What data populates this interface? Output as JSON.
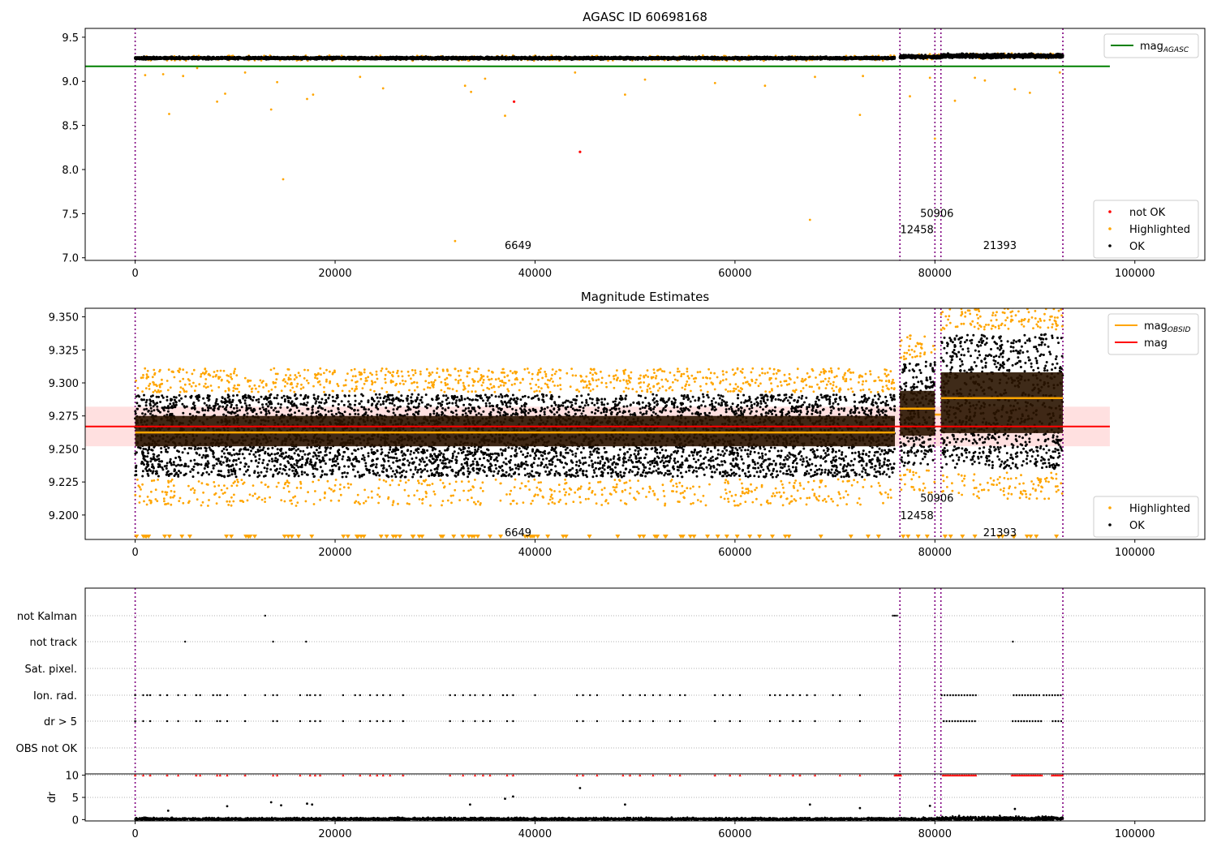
{
  "chart_data": [
    {
      "type": "scatter",
      "title": "AGASC ID 60698168",
      "xlim": [
        -5000,
        107000
      ],
      "ylim": [
        6.97,
        9.6
      ],
      "xticks": [
        0,
        20000,
        40000,
        60000,
        80000,
        100000
      ],
      "yticks": [
        7.0,
        7.5,
        8.0,
        8.5,
        9.0,
        9.5
      ],
      "ytick_labels": [
        "7.0",
        "7.5",
        "8.0",
        "8.5",
        "9.0",
        "9.5"
      ],
      "hline": {
        "name": "mag_AGASC",
        "y": 9.17,
        "x_end": 97500,
        "color": "#008000"
      },
      "obsid_boundaries": [
        0,
        76500,
        80000,
        80600,
        92800
      ],
      "obsid_labels": [
        {
          "text": "6649",
          "x": 38300,
          "y": 7.1
        },
        {
          "text": "12458",
          "x": 78200,
          "y": 7.28
        },
        {
          "text": "50906",
          "x": 80200,
          "y": 7.46
        },
        {
          "text": "21393",
          "x": 86500,
          "y": 7.1
        }
      ],
      "segments": [
        {
          "x0": 0,
          "x1": 76000,
          "mean": 9.263,
          "spread": 0.03
        },
        {
          "x0": 76500,
          "x1": 80000,
          "mean": 9.279,
          "spread": 0.04
        },
        {
          "x0": 80000,
          "x1": 80600,
          "mean": 9.276,
          "spread": 0.04
        },
        {
          "x0": 80600,
          "x1": 92800,
          "mean": 9.288,
          "spread": 0.05
        }
      ],
      "not_ok_points": [
        {
          "x": 37900,
          "y": 8.77
        },
        {
          "x": 44500,
          "y": 8.2
        }
      ],
      "highlighted_points": [
        {
          "x": 3400,
          "y": 8.63
        },
        {
          "x": 8200,
          "y": 8.77
        },
        {
          "x": 9000,
          "y": 8.86
        },
        {
          "x": 13600,
          "y": 8.68
        },
        {
          "x": 14800,
          "y": 7.89
        },
        {
          "x": 17200,
          "y": 8.8
        },
        {
          "x": 17800,
          "y": 8.85
        },
        {
          "x": 24800,
          "y": 8.92
        },
        {
          "x": 32000,
          "y": 7.19
        },
        {
          "x": 33000,
          "y": 8.95
        },
        {
          "x": 33600,
          "y": 8.88
        },
        {
          "x": 37000,
          "y": 8.61
        },
        {
          "x": 49000,
          "y": 8.85
        },
        {
          "x": 63000,
          "y": 8.95
        },
        {
          "x": 67500,
          "y": 7.43
        },
        {
          "x": 72500,
          "y": 8.62
        },
        {
          "x": 77500,
          "y": 8.83
        },
        {
          "x": 79500,
          "y": 9.04
        },
        {
          "x": 80000,
          "y": 8.35
        },
        {
          "x": 82000,
          "y": 8.78
        },
        {
          "x": 84000,
          "y": 9.04
        },
        {
          "x": 85000,
          "y": 9.01
        },
        {
          "x": 88000,
          "y": 8.91
        },
        {
          "x": 89500,
          "y": 8.87
        },
        {
          "x": 1000,
          "y": 9.07
        },
        {
          "x": 2800,
          "y": 9.08
        },
        {
          "x": 4800,
          "y": 9.06
        },
        {
          "x": 6200,
          "y": 9.15
        },
        {
          "x": 11000,
          "y": 9.1
        },
        {
          "x": 14200,
          "y": 8.99
        },
        {
          "x": 22500,
          "y": 9.05
        },
        {
          "x": 35000,
          "y": 9.03
        },
        {
          "x": 44000,
          "y": 9.1
        },
        {
          "x": 51000,
          "y": 9.02
        },
        {
          "x": 58000,
          "y": 8.98
        },
        {
          "x": 68000,
          "y": 9.05
        },
        {
          "x": 72800,
          "y": 9.06
        },
        {
          "x": 92500,
          "y": 9.1
        }
      ],
      "legend": {
        "position": "lower-right",
        "entries": [
          {
            "label": "not OK",
            "color": "#ff0000"
          },
          {
            "label": "Highlighted",
            "color": "#ffa500"
          },
          {
            "label": "OK",
            "color": "#000000"
          }
        ],
        "top_entry": {
          "label": "mag",
          "subscript": "AGASC",
          "color": "#008000"
        }
      }
    },
    {
      "type": "scatter",
      "title": "Magnitude Estimates",
      "xlim": [
        -5000,
        107000
      ],
      "ylim": [
        9.1815,
        9.3565
      ],
      "xticks": [
        0,
        20000,
        40000,
        60000,
        80000,
        100000
      ],
      "yticks": [
        9.2,
        9.225,
        9.25,
        9.275,
        9.3,
        9.325,
        9.35
      ],
      "ytick_labels": [
        "9.200",
        "9.225",
        "9.250",
        "9.275",
        "9.300",
        "9.325",
        "9.350"
      ],
      "mean_mag": {
        "name": "mag",
        "y": 9.267,
        "band": [
          9.252,
          9.282
        ],
        "x_end": 97500,
        "color": "#ff0000"
      },
      "obsid_mags": [
        {
          "x0": 0,
          "x1": 76000,
          "y": 9.2625
        },
        {
          "x0": 76500,
          "x1": 80000,
          "y": 9.2805
        },
        {
          "x0": 80000,
          "x1": 80600,
          "y": 9.276
        },
        {
          "x0": 80600,
          "x1": 92800,
          "y": 9.2885
        }
      ],
      "obsid_boundaries": [
        0,
        76500,
        80000,
        80600,
        92800
      ],
      "obsid_labels": [
        {
          "text": "6649",
          "x": 38300,
          "y": 9.184
        },
        {
          "text": "12458",
          "x": 78200,
          "y": 9.197
        },
        {
          "text": "50906",
          "x": 80200,
          "y": 9.21
        },
        {
          "text": "21393",
          "x": 86500,
          "y": 9.184
        }
      ],
      "segments": [
        {
          "x0": 0,
          "x1": 76000,
          "lo": 9.227,
          "hi": 9.293,
          "core_lo": 9.252,
          "core_hi": 9.275
        },
        {
          "x0": 76500,
          "x1": 80000,
          "lo": 9.235,
          "hi": 9.318,
          "core_lo": 9.26,
          "core_hi": 9.294
        },
        {
          "x0": 80600,
          "x1": 92800,
          "lo": 9.232,
          "hi": 9.34,
          "core_lo": 9.262,
          "core_hi": 9.308
        }
      ],
      "legend": {
        "position": "lower-right",
        "entries": [
          {
            "label": "Highlighted",
            "color": "#ffa500"
          },
          {
            "label": "OK",
            "color": "#000000"
          }
        ],
        "top_entries": [
          {
            "label": "mag",
            "subscript": "OBSID",
            "color": "#ffa500"
          },
          {
            "label": "mag",
            "color": "#ff0000"
          }
        ]
      }
    },
    {
      "type": "scatter",
      "xlim": [
        -5000,
        107000
      ],
      "xticks": [
        0,
        20000,
        40000,
        60000,
        80000,
        100000
      ],
      "flag_rows": [
        "not Kalman",
        "not track",
        "Sat. pixel.",
        "Ion. rad.",
        "dr > 5",
        "OBS not OK"
      ],
      "flag_points": {
        "not Kalman": [
          13000,
          75800,
          76000,
          76200
        ],
        "not track": [
          5000,
          13800,
          17100,
          87800
        ],
        "Sat. pixel.": [],
        "Ion. rad.": [
          0,
          800,
          1200,
          1500,
          2500,
          3200,
          4300,
          5000,
          6100,
          6500,
          7800,
          8200,
          8500,
          9200,
          11000,
          13000,
          13800,
          14200,
          16500,
          17200,
          17500,
          18000,
          18500,
          20800,
          22000,
          22500,
          23500,
          24200,
          24800,
          25500,
          26800,
          31500,
          32000,
          32800,
          33500,
          34000,
          34800,
          35500,
          36800,
          37200,
          37800,
          40000,
          44200,
          44800,
          45500,
          46200,
          48800,
          49500,
          50500,
          51000,
          51800,
          52500,
          53500,
          54500,
          55000,
          58000,
          58800,
          59500,
          60500,
          63500,
          64000,
          64500,
          65200,
          65800,
          66500,
          67200,
          68000,
          69800,
          70500,
          72500
        ],
        "dr > 5": [
          0,
          800,
          1500,
          3200,
          4300,
          6100,
          6500,
          8200,
          8500,
          9200,
          11000,
          13800,
          14200,
          16500,
          17500,
          18000,
          18500,
          20800,
          22500,
          23500,
          24200,
          24800,
          25500,
          26800,
          31500,
          32800,
          34000,
          34800,
          35500,
          37200,
          37800,
          44200,
          44800,
          46200,
          48800,
          49500,
          50500,
          51800,
          53500,
          54500,
          58000,
          59500,
          60500,
          63500,
          64500,
          65800,
          66500,
          68000,
          70500,
          72500
        ],
        "OBS not OK": []
      },
      "dense_flag_ranges": [
        {
          "row": "Ion. rad.",
          "x0": 80600,
          "x1": 84300
        },
        {
          "row": "Ion. rad.",
          "x0": 87800,
          "x1": 90600
        },
        {
          "row": "Ion. rad.",
          "x0": 90800,
          "x1": 92800
        },
        {
          "row": "dr > 5",
          "x0": 80800,
          "x1": 84200
        },
        {
          "row": "dr > 5",
          "x0": 87700,
          "x1": 90800
        },
        {
          "row": "dr > 5",
          "x0": 91700,
          "x1": 92800
        }
      ],
      "obsid_boundaries": [
        0,
        76500,
        80000,
        80600,
        92800
      ]
    },
    {
      "type": "scatter",
      "ylabel": "dr",
      "xlim": [
        -5000,
        107000
      ],
      "ylim": [
        -0.3,
        10.3
      ],
      "yticks": [
        0,
        5,
        10
      ],
      "xticks": [
        0,
        20000,
        40000,
        60000,
        80000,
        100000
      ],
      "clipped_value": 10,
      "outliers": [
        {
          "x": 3300,
          "y": 2.0
        },
        {
          "x": 9200,
          "y": 3.0
        },
        {
          "x": 13600,
          "y": 3.9
        },
        {
          "x": 14600,
          "y": 3.2
        },
        {
          "x": 17200,
          "y": 3.6
        },
        {
          "x": 17700,
          "y": 3.4
        },
        {
          "x": 33500,
          "y": 3.4
        },
        {
          "x": 37000,
          "y": 4.7
        },
        {
          "x": 37800,
          "y": 5.2
        },
        {
          "x": 44500,
          "y": 7.1
        },
        {
          "x": 49000,
          "y": 3.4
        },
        {
          "x": 67500,
          "y": 3.4
        },
        {
          "x": 72500,
          "y": 2.6
        },
        {
          "x": 79500,
          "y": 3.1
        },
        {
          "x": 88000,
          "y": 2.4
        }
      ],
      "obsid_boundaries": [
        0,
        76500,
        80000,
        80600,
        92800
      ]
    }
  ]
}
